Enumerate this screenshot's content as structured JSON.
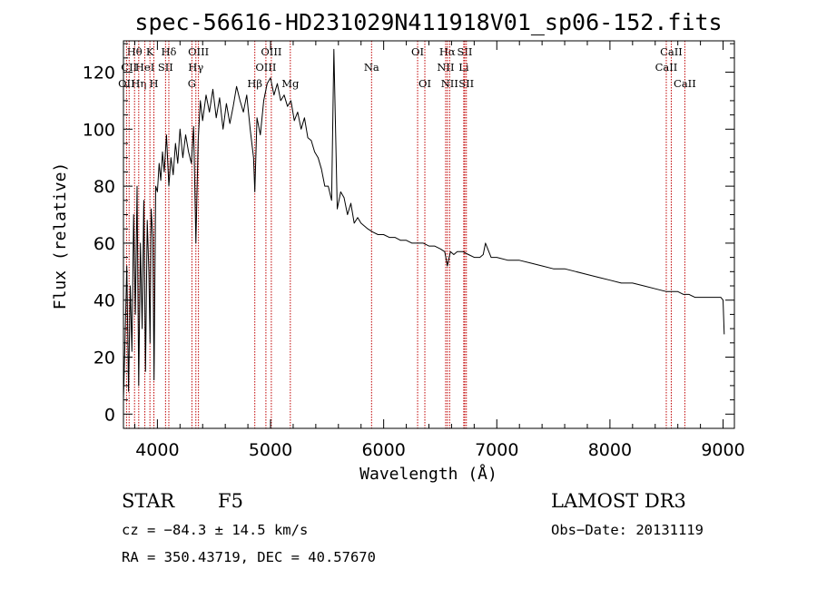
{
  "chart_data": {
    "type": "line",
    "title": "spec-56616-HD231029N411918V01_sp06-152.fits",
    "xlabel": "Wavelength (Å)",
    "ylabel": "Flux (relative)",
    "xlim": [
      3700,
      9100
    ],
    "ylim": [
      -5,
      131
    ],
    "xticks": [
      4000,
      5000,
      6000,
      7000,
      8000,
      9000
    ],
    "yticks": [
      0,
      20,
      40,
      60,
      80,
      100,
      120
    ],
    "xtick_labels": [
      "4000",
      "5000",
      "6000",
      "7000",
      "8000",
      "9000"
    ],
    "ytick_labels": [
      "0",
      "20",
      "40",
      "60",
      "80",
      "100",
      "120"
    ],
    "series": [
      {
        "name": "spectrum",
        "x": [
          3700,
          3715,
          3730,
          3745,
          3760,
          3775,
          3790,
          3805,
          3820,
          3835,
          3850,
          3865,
          3880,
          3895,
          3910,
          3925,
          3935,
          3945,
          3960,
          3970,
          3985,
          4000,
          4015,
          4030,
          4045,
          4060,
          4080,
          4101,
          4120,
          4140,
          4160,
          4180,
          4200,
          4225,
          4250,
          4275,
          4300,
          4320,
          4340,
          4360,
          4380,
          4400,
          4430,
          4460,
          4490,
          4520,
          4550,
          4580,
          4610,
          4640,
          4670,
          4700,
          4730,
          4760,
          4790,
          4820,
          4850,
          4861,
          4880,
          4910,
          4940,
          4970,
          5000,
          5030,
          5060,
          5090,
          5120,
          5150,
          5180,
          5210,
          5240,
          5270,
          5300,
          5330,
          5360,
          5390,
          5420,
          5450,
          5480,
          5510,
          5540,
          5560,
          5590,
          5620,
          5650,
          5680,
          5710,
          5740,
          5770,
          5800,
          5830,
          5860,
          5900,
          5950,
          6000,
          6050,
          6100,
          6150,
          6200,
          6250,
          6300,
          6350,
          6400,
          6450,
          6500,
          6540,
          6563,
          6590,
          6620,
          6650,
          6700,
          6750,
          6800,
          6850,
          6880,
          6900,
          6950,
          7000,
          7100,
          7200,
          7300,
          7400,
          7500,
          7600,
          7700,
          7800,
          7900,
          8000,
          8100,
          8200,
          8300,
          8400,
          8500,
          8550,
          8600,
          8650,
          8700,
          8750,
          8800,
          8850,
          8900,
          8950,
          8980,
          9000,
          9010
        ],
        "values": [
          5,
          28,
          52,
          8,
          45,
          22,
          70,
          35,
          80,
          10,
          60,
          30,
          75,
          15,
          68,
          50,
          25,
          72,
          62,
          12,
          80,
          78,
          88,
          82,
          92,
          85,
          98,
          80,
          90,
          84,
          95,
          88,
          100,
          90,
          98,
          92,
          88,
          101,
          60,
          96,
          110,
          103,
          112,
          106,
          114,
          104,
          111,
          100,
          109,
          102,
          108,
          115,
          110,
          106,
          112,
          100,
          90,
          78,
          104,
          98,
          110,
          116,
          118,
          112,
          116,
          110,
          112,
          108,
          110,
          103,
          106,
          100,
          104,
          97,
          96,
          92,
          90,
          86,
          80,
          80,
          75,
          128,
          72,
          78,
          76,
          70,
          74,
          67,
          69,
          67,
          66,
          65,
          64,
          63,
          63,
          62,
          62,
          61,
          61,
          60,
          60,
          60,
          59,
          59,
          58,
          57,
          52,
          57,
          56,
          57,
          57,
          56,
          55,
          55,
          56,
          60,
          55,
          55,
          54,
          54,
          53,
          52,
          51,
          51,
          50,
          49,
          48,
          47,
          46,
          46,
          45,
          44,
          43,
          43,
          43,
          42,
          42,
          41,
          41,
          41,
          41,
          41,
          41,
          40,
          28
        ]
      }
    ],
    "emission_lines": [
      {
        "label": "Hθ",
        "x": 3798,
        "row": 1
      },
      {
        "label": "CII",
        "x": 3750,
        "row": 2
      },
      {
        "label": "OII",
        "x": 3727,
        "row": 3
      },
      {
        "label": "Hη",
        "x": 3835,
        "row": 3
      },
      {
        "label": "HeI",
        "x": 3889,
        "row": 2
      },
      {
        "label": "K",
        "x": 3934,
        "row": 1
      },
      {
        "label": "H",
        "x": 3969,
        "row": 3
      },
      {
        "label": "SII",
        "x": 4072,
        "row": 2
      },
      {
        "label": "Hδ",
        "x": 4101,
        "row": 1
      },
      {
        "label": "OIII",
        "x": 4363,
        "row": 1
      },
      {
        "label": "Hγ",
        "x": 4340,
        "row": 2
      },
      {
        "label": "G",
        "x": 4305,
        "row": 3
      },
      {
        "label": "Hβ",
        "x": 4861,
        "row": 3
      },
      {
        "label": "OIII",
        "x": 5007,
        "row": 1
      },
      {
        "label": "OIII",
        "x": 4959,
        "row": 2
      },
      {
        "label": "Mg",
        "x": 5175,
        "row": 3
      },
      {
        "label": "Na",
        "x": 5893,
        "row": 2
      },
      {
        "label": "OI",
        "x": 6300,
        "row": 1
      },
      {
        "label": "OI",
        "x": 6364,
        "row": 3
      },
      {
        "label": "Hα",
        "x": 6563,
        "row": 1
      },
      {
        "label": "NII",
        "x": 6548,
        "row": 2
      },
      {
        "label": "NII",
        "x": 6583,
        "row": 3
      },
      {
        "label": "SII",
        "x": 6717,
        "row": 1
      },
      {
        "label": "Li",
        "x": 6708,
        "row": 2
      },
      {
        "label": "SII",
        "x": 6731,
        "row": 3
      },
      {
        "label": "CaII",
        "x": 8542,
        "row": 1
      },
      {
        "label": "CaII",
        "x": 8498,
        "row": 2
      },
      {
        "label": "CaII",
        "x": 8662,
        "row": 3
      }
    ],
    "colors": {
      "spectrum": "#000000",
      "lines": "#c00000",
      "axes": "#000000"
    }
  },
  "info": {
    "class": "STAR",
    "subclass": "F5",
    "survey": "LAMOST DR3",
    "cz": "cz = −84.3 ± 14.5 km/s",
    "obs_date": "Obs−Date: 20131119",
    "coords": "RA = 350.43719, DEC =  40.57670"
  }
}
